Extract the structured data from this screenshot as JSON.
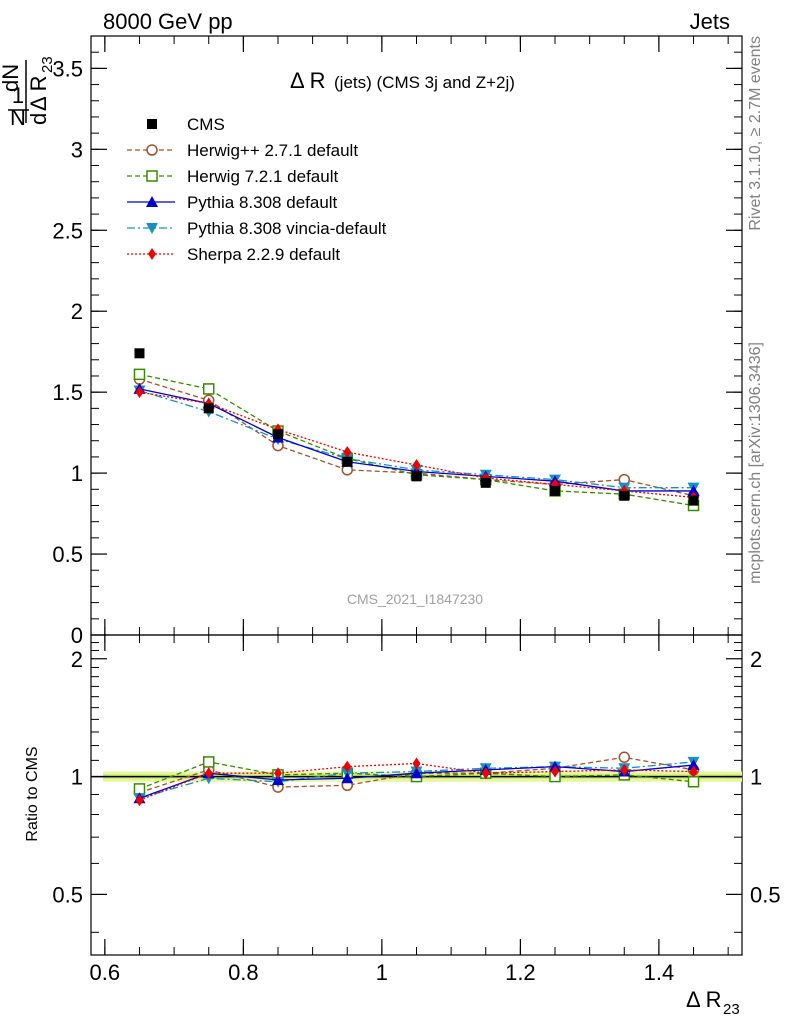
{
  "header": {
    "left": "8000 GeV pp",
    "right": "Jets"
  },
  "side_labels": {
    "rivet": "Rivet 3.1.10, ≥ 2.7M events",
    "mcplots": "mcplots.cern.ch [arXiv:1306.3436]"
  },
  "watermark": "CMS_2021_I1847230",
  "chart_data": [
    {
      "type": "line",
      "title": "Δ R (jets) (CMS 3j and Z+2j)",
      "ylabel": "1/N dN/dΔ R23",
      "xlabel": "Δ R23",
      "xlim": [
        0.58,
        1.52
      ],
      "ylim": [
        0,
        3.7
      ],
      "xticks": [
        "0.6",
        "0.8",
        "1",
        "1.2",
        "1.4"
      ],
      "yticks": [
        "0",
        "0.5",
        "1",
        "1.5",
        "2",
        "2.5",
        "3",
        "3.5"
      ],
      "legend_position": "top-left",
      "x": [
        0.65,
        0.75,
        0.85,
        0.95,
        1.05,
        1.15,
        1.25,
        1.35,
        1.45
      ],
      "series": [
        {
          "name": "CMS",
          "color": "#000000",
          "marker": "square-filled",
          "values": [
            1.74,
            1.4,
            1.24,
            1.07,
            0.98,
            0.94,
            0.89,
            0.86,
            0.83
          ]
        },
        {
          "name": "Herwig++ 2.7.1 default",
          "color": "#a0522d",
          "marker": "circle-open",
          "dash": "5,3",
          "values": [
            1.58,
            1.45,
            1.17,
            1.02,
            1.0,
            0.96,
            0.93,
            0.96,
            0.86
          ]
        },
        {
          "name": "Herwig 7.2.1 default",
          "color": "#3a8a00",
          "marker": "square-open",
          "dash": "5,3",
          "values": [
            1.61,
            1.52,
            1.26,
            1.09,
            0.99,
            0.96,
            0.89,
            0.87,
            0.8
          ]
        },
        {
          "name": "Pythia 8.308 default",
          "color": "#0000cc",
          "marker": "triangle-up",
          "values": [
            1.52,
            1.43,
            1.22,
            1.07,
            1.01,
            0.98,
            0.95,
            0.89,
            0.89
          ]
        },
        {
          "name": "Pythia 8.308 vincia-default",
          "color": "#1a90c0",
          "marker": "triangle-down",
          "dash": "8,3,2,3",
          "values": [
            1.51,
            1.38,
            1.21,
            1.09,
            1.02,
            0.99,
            0.96,
            0.91,
            0.91
          ]
        },
        {
          "name": "Sherpa 2.2.9 default",
          "color": "#ee0000",
          "marker": "diamond",
          "dash": "2,2",
          "values": [
            1.5,
            1.43,
            1.27,
            1.13,
            1.05,
            0.97,
            0.93,
            0.89,
            0.85
          ]
        }
      ]
    },
    {
      "type": "line",
      "ylabel": "Ratio to CMS",
      "xlabel": "Δ R23",
      "xlim": [
        0.58,
        1.52
      ],
      "ylim": [
        0.35,
        2.3
      ],
      "yticks": [
        "0.5",
        "1",
        "2"
      ],
      "band": [
        0.97,
        1.03
      ],
      "x": [
        0.65,
        0.75,
        0.85,
        0.95,
        1.05,
        1.15,
        1.25,
        1.35,
        1.45
      ],
      "series": [
        {
          "name": "Herwig++ 2.7.1 default",
          "values": [
            0.91,
            1.04,
            0.94,
            0.95,
            1.02,
            1.02,
            1.05,
            1.12,
            1.04
          ]
        },
        {
          "name": "Herwig 7.2.1 default",
          "values": [
            0.93,
            1.09,
            1.01,
            1.02,
            1.0,
            1.02,
            1.0,
            1.01,
            0.97
          ]
        },
        {
          "name": "Pythia 8.308 default",
          "values": [
            0.88,
            1.02,
            0.98,
            0.99,
            1.02,
            1.04,
            1.06,
            1.03,
            1.07
          ]
        },
        {
          "name": "Pythia 8.308 vincia-default",
          "values": [
            0.88,
            0.99,
            0.97,
            1.02,
            1.03,
            1.05,
            1.06,
            1.05,
            1.09
          ]
        },
        {
          "name": "Sherpa 2.2.9 default",
          "values": [
            0.87,
            1.02,
            1.02,
            1.06,
            1.08,
            1.02,
            1.03,
            1.04,
            1.03
          ]
        }
      ]
    }
  ]
}
